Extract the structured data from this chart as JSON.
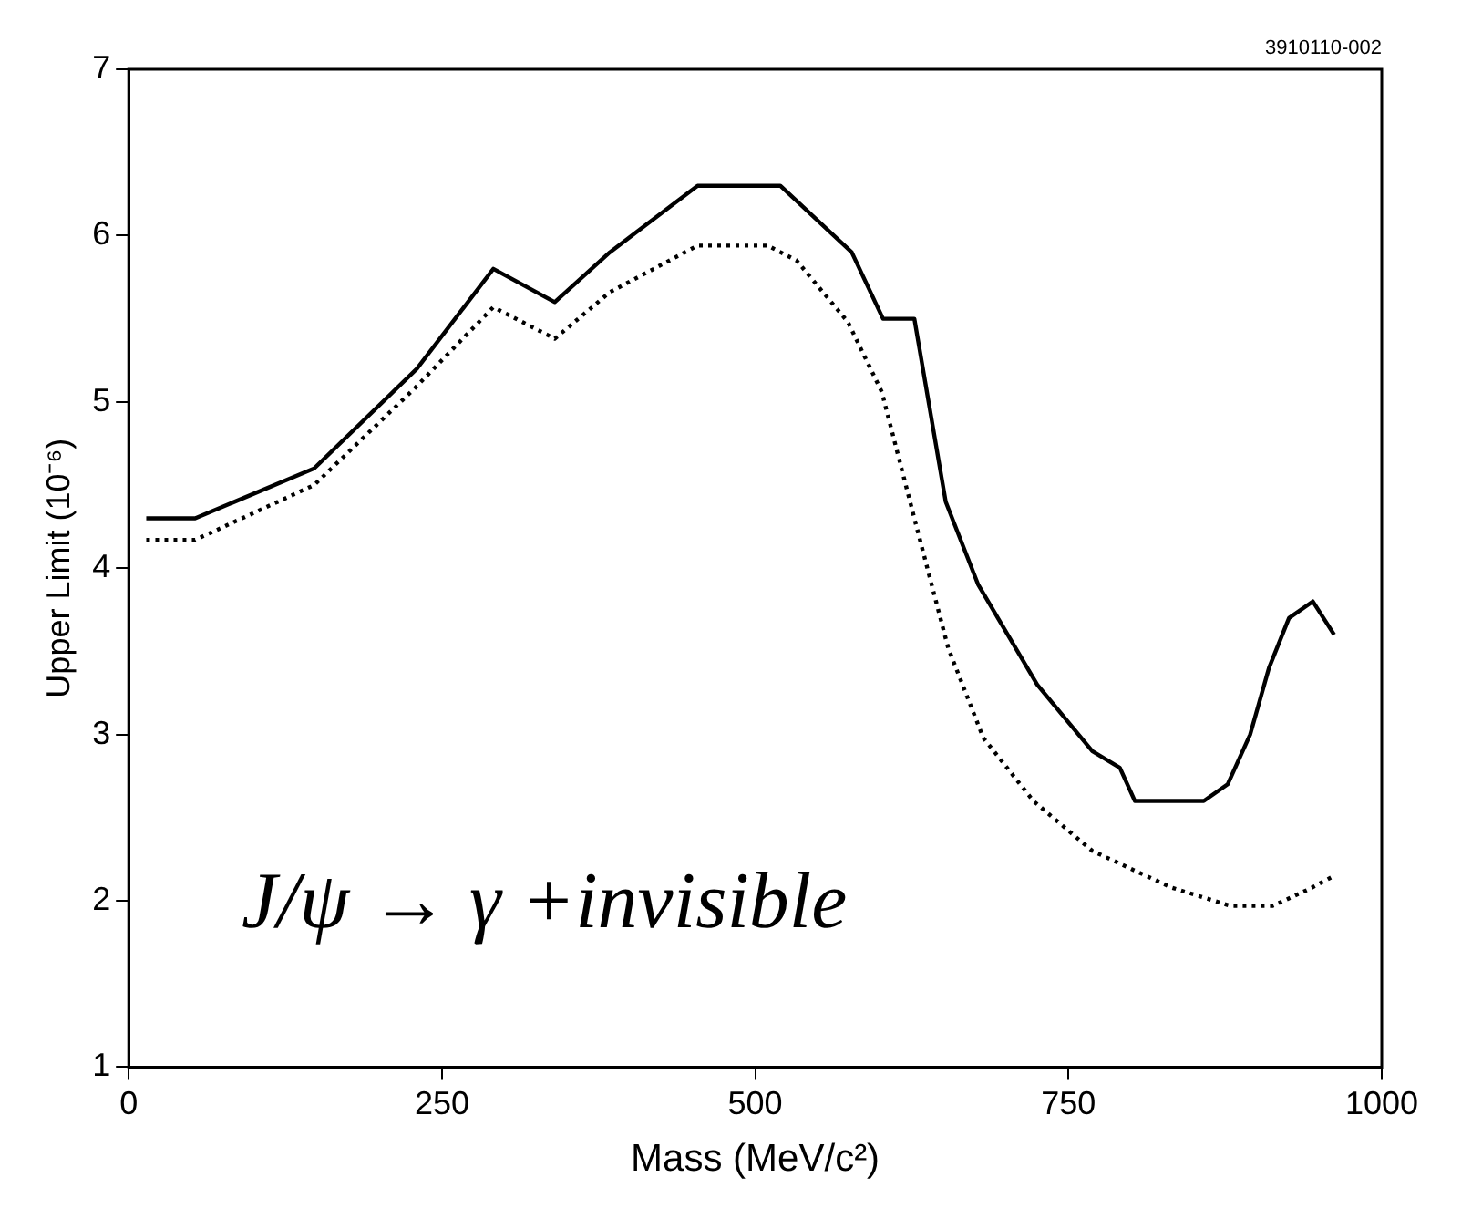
{
  "chart_data": {
    "type": "line",
    "xlabel": "Mass (MeV/c²)",
    "ylabel": "Upper Limit (10⁻⁶)",
    "annotations": [
      "3910110-002",
      "J/ψ → γ +invisible"
    ],
    "xlim": [
      0,
      1000
    ],
    "xticks": [
      0,
      250,
      500,
      750,
      1000
    ],
    "ylim": [
      1,
      7
    ],
    "yticks": [
      1,
      2,
      3,
      4,
      5,
      6,
      7
    ],
    "grid": false,
    "legend": false,
    "marker": "none",
    "series": [
      {
        "color": "#000000",
        "line_style": "solid",
        "x": [
          14,
          53,
          148,
          230,
          291,
          340,
          384,
          454,
          520,
          577,
          602,
          627,
          652,
          678,
          725,
          769,
          791,
          803,
          858,
          877,
          895,
          910,
          926,
          945,
          962
        ],
        "values": [
          4.3,
          4.3,
          4.6,
          5.2,
          5.8,
          5.6,
          5.9,
          6.3,
          6.3,
          5.9,
          5.5,
          5.5,
          4.4,
          3.9,
          3.3,
          2.9,
          2.8,
          2.6,
          2.6,
          2.7,
          3.0,
          3.4,
          3.7,
          3.8,
          3.6
        ]
      },
      {
        "color": "#000000",
        "line_style": "dotted",
        "x": [
          14,
          53,
          148,
          228,
          291,
          340,
          384,
          454,
          510,
          533,
          574,
          601,
          627,
          654,
          682,
          722,
          769,
          832,
          879,
          913,
          942,
          962
        ],
        "values": [
          4.17,
          4.17,
          4.5,
          5.08,
          5.57,
          5.38,
          5.66,
          5.94,
          5.94,
          5.85,
          5.48,
          5.06,
          4.3,
          3.52,
          2.98,
          2.6,
          2.3,
          2.08,
          1.97,
          1.97,
          2.07,
          2.15
        ]
      }
    ]
  }
}
